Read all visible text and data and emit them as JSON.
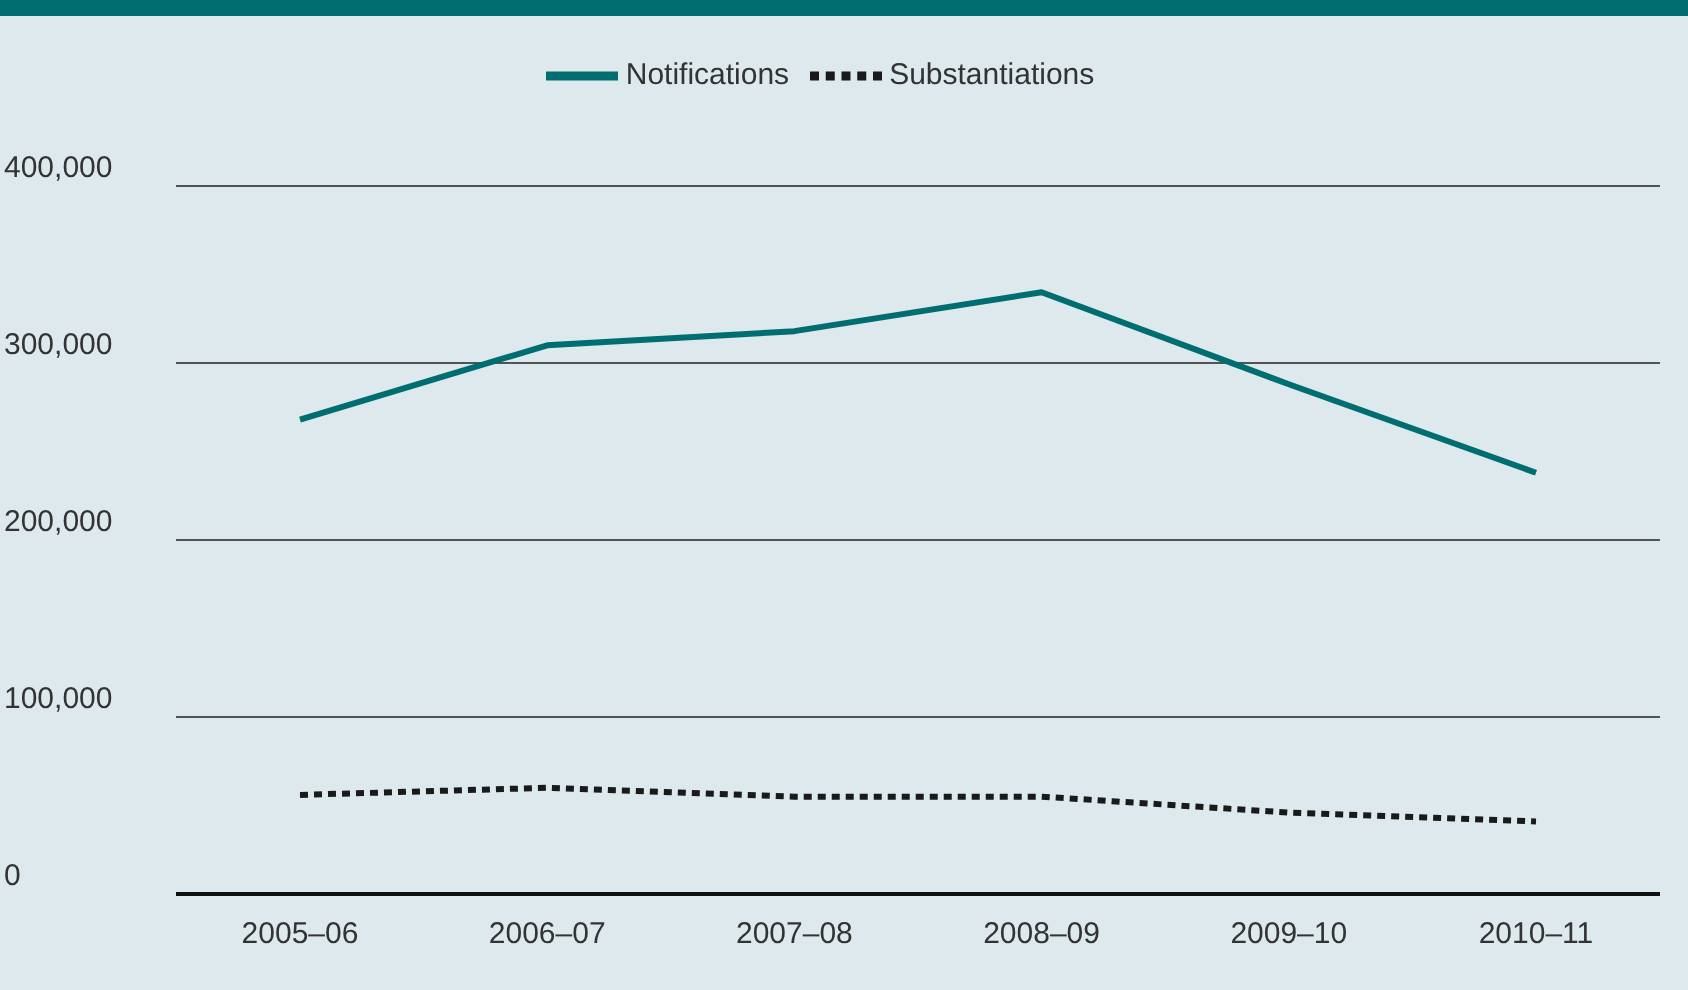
{
  "chart_data": {
    "type": "line",
    "categories": [
      "2005–06",
      "2006–07",
      "2007–08",
      "2008–09",
      "2009–10",
      "2010–11"
    ],
    "series": [
      {
        "name": "Notifications",
        "color": "#006e71",
        "values": [
          268000,
          310000,
          318000,
          340000,
          288000,
          238000
        ],
        "line_style": "solid"
      },
      {
        "name": "Substantiations",
        "color": "#1a1a1a",
        "values": [
          56000,
          60000,
          55000,
          55000,
          46000,
          41000
        ],
        "line_style": "dotted"
      }
    ],
    "ylim": [
      0,
      400000
    ],
    "yticks": [
      0,
      {
        "value": 100000,
        "label": "100,000"
      },
      {
        "value": 200000,
        "label": "200,000"
      },
      {
        "value": 300000,
        "label": "300,000"
      },
      {
        "value": 400000,
        "label": "400,000"
      }
    ],
    "grid": "y",
    "legend": "top",
    "marker": "none"
  }
}
